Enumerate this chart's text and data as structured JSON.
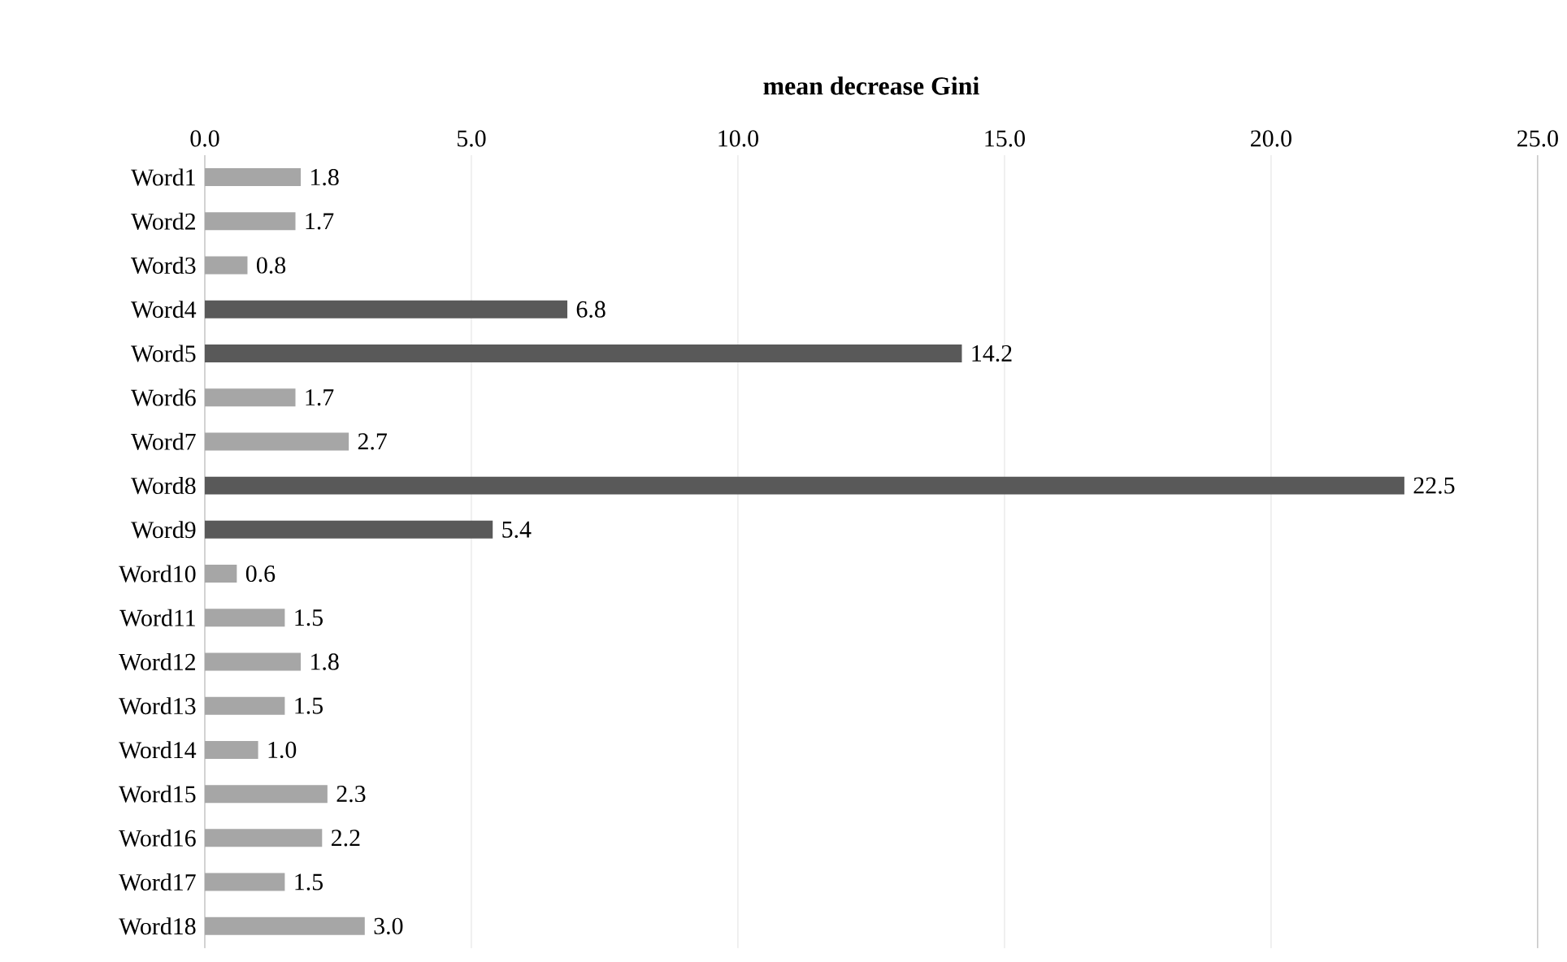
{
  "chart_data": {
    "type": "bar",
    "orientation": "horizontal",
    "title": "mean decrease Gini",
    "categories": [
      "Word1",
      "Word2",
      "Word3",
      "Word4",
      "Word5",
      "Word6",
      "Word7",
      "Word8",
      "Word9",
      "Word10",
      "Word11",
      "Word12",
      "Word13",
      "Word14",
      "Word15",
      "Word16",
      "Word17",
      "Word18"
    ],
    "values": [
      1.8,
      1.7,
      0.8,
      6.8,
      14.2,
      1.7,
      2.7,
      22.5,
      5.4,
      0.6,
      1.5,
      1.8,
      1.5,
      1.0,
      2.3,
      2.2,
      1.5,
      3.0
    ],
    "colors": [
      "#a6a6a6",
      "#a6a6a6",
      "#a6a6a6",
      "#595959",
      "#595959",
      "#a6a6a6",
      "#a6a6a6",
      "#595959",
      "#595959",
      "#a6a6a6",
      "#a6a6a6",
      "#a6a6a6",
      "#a6a6a6",
      "#a6a6a6",
      "#a6a6a6",
      "#a6a6a6",
      "#a6a6a6",
      "#a6a6a6"
    ],
    "xlim": [
      0,
      25
    ],
    "xticks": [
      {
        "value": 0,
        "label": "0.0"
      },
      {
        "value": 5,
        "label": "5.0"
      },
      {
        "value": 10,
        "label": "10.0"
      },
      {
        "value": 15,
        "label": "15.0"
      },
      {
        "value": 20,
        "label": "20.0"
      },
      {
        "value": 25,
        "label": "25.0"
      }
    ],
    "value_labels": [
      "1.8",
      "1.7",
      "0.8",
      "6.8",
      "14.2",
      "1.7",
      "2.7",
      "22.5",
      "5.4",
      "0.6",
      "1.5",
      "1.8",
      "1.5",
      "1.0",
      "2.3",
      "2.2",
      "1.5",
      "3.0"
    ],
    "grid": "x"
  }
}
